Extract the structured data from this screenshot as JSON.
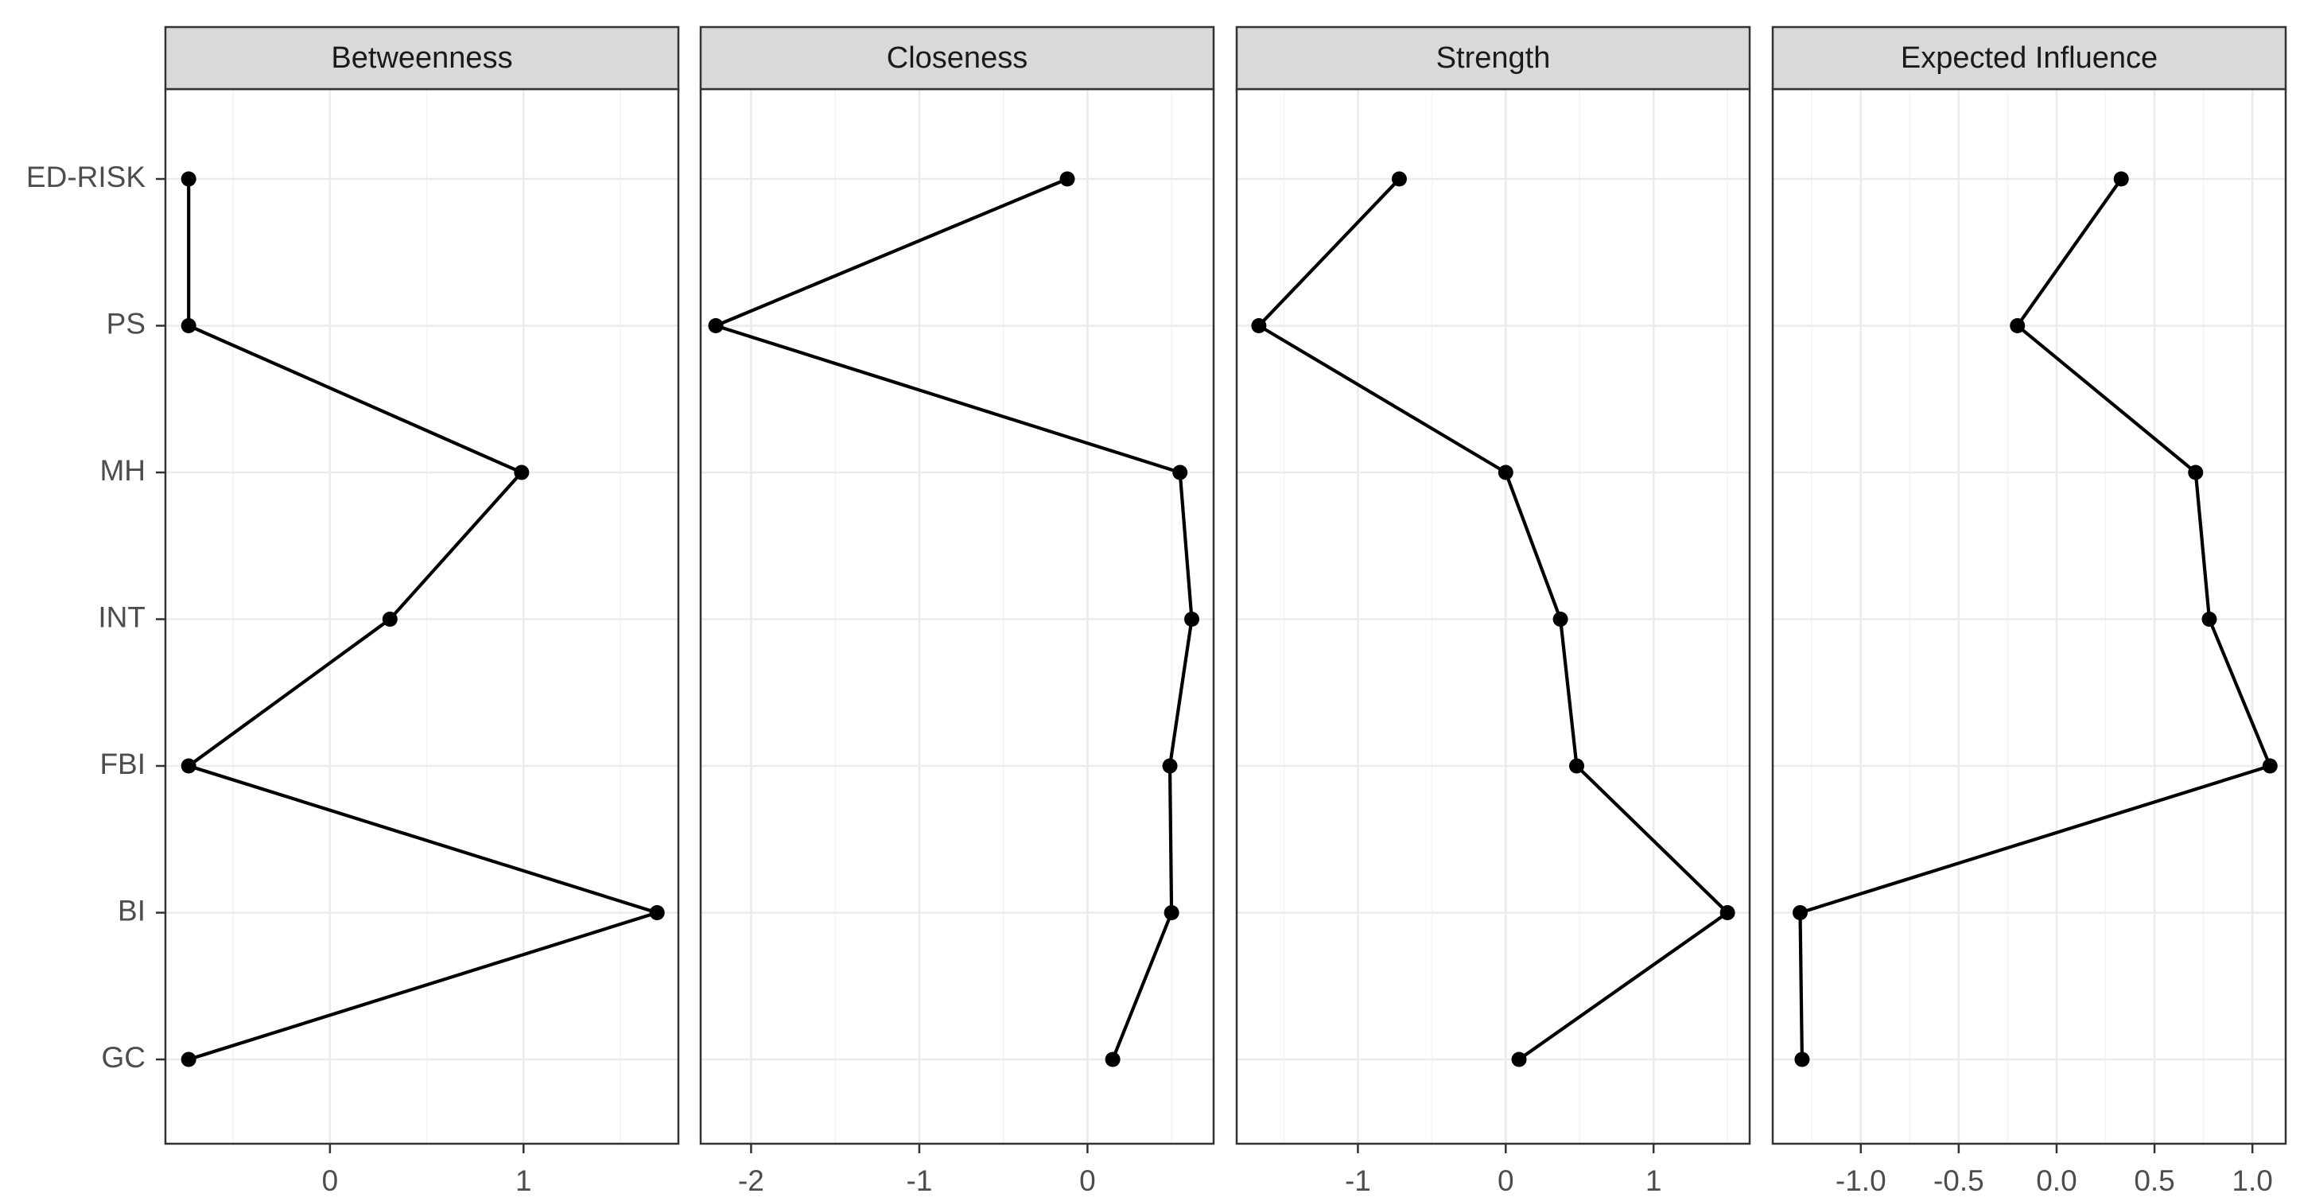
{
  "chart_data": {
    "type": "line",
    "orientation": "horizontal-values",
    "nodes": [
      "ED-RISK",
      "PS",
      "MH",
      "INT",
      "FBI",
      "BI",
      "GC"
    ],
    "grid": true,
    "legend": "none",
    "panels": [
      {
        "title": "Betweenness",
        "xlim": [
          -0.85,
          1.8
        ],
        "xticks": [
          0,
          1
        ],
        "xtick_labels": [
          "0",
          "1"
        ],
        "values": [
          -0.73,
          -0.73,
          0.99,
          0.31,
          -0.73,
          1.69,
          -0.73
        ]
      },
      {
        "title": "Closeness",
        "xlim": [
          -2.3,
          0.75
        ],
        "xticks": [
          -2,
          -1,
          0
        ],
        "xtick_labels": [
          "-2",
          "-1",
          "0"
        ],
        "values": [
          -0.12,
          -2.21,
          0.55,
          0.62,
          0.49,
          0.5,
          0.15
        ]
      },
      {
        "title": "Strength",
        "xlim": [
          -1.82,
          1.65
        ],
        "xticks": [
          -1,
          0,
          1
        ],
        "xtick_labels": [
          "-1",
          "0",
          "1"
        ],
        "values": [
          -0.72,
          -1.67,
          0.0,
          0.37,
          0.48,
          1.5,
          0.09
        ]
      },
      {
        "title": "Expected Influence",
        "xlim": [
          -1.45,
          1.17
        ],
        "xticks": [
          -1.0,
          -0.5,
          0.0,
          0.5,
          1.0
        ],
        "xtick_labels": [
          "-1.0",
          "-0.5",
          "0.0",
          "0.5",
          "1.0"
        ],
        "values": [
          0.33,
          -0.2,
          0.71,
          0.78,
          1.09,
          -1.31,
          -1.3
        ]
      }
    ]
  }
}
